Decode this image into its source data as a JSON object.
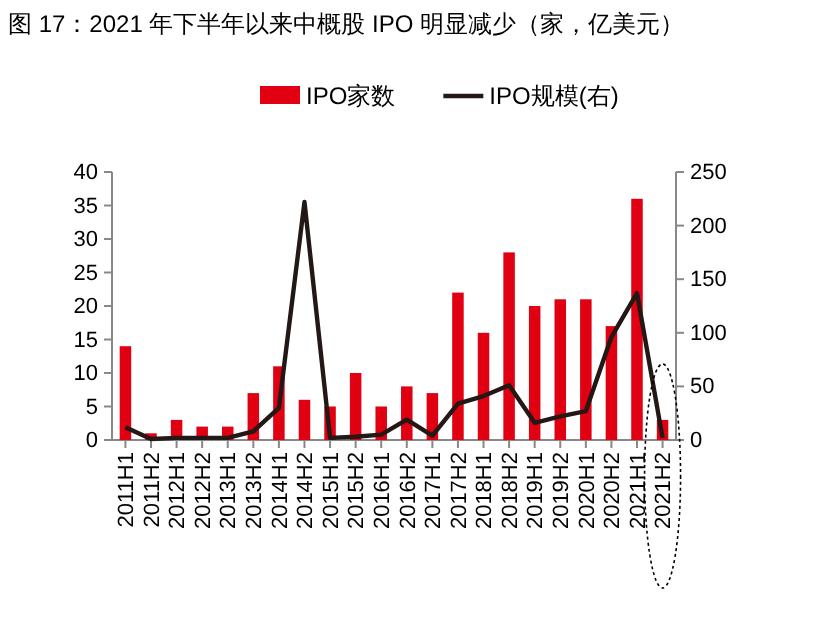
{
  "chart_data": {
    "type": "bar",
    "title": "图 17：2021 年下半年以来中概股 IPO 明显减少（家，亿美元）",
    "categories": [
      "2011H1",
      "2011H2",
      "2012H1",
      "2012H2",
      "2013H1",
      "2013H2",
      "2014H1",
      "2014H2",
      "2015H1",
      "2015H2",
      "2016H1",
      "2016H2",
      "2017H1",
      "2017H2",
      "2018H1",
      "2018H2",
      "2019H1",
      "2019H2",
      "2020H1",
      "2020H2",
      "2021H1",
      "2021H2"
    ],
    "series": [
      {
        "name": "IPO家数",
        "color": "#e00012",
        "values": [
          14,
          1,
          3,
          2,
          2,
          7,
          11,
          6,
          5,
          10,
          5,
          8,
          7,
          22,
          16,
          28,
          20,
          21,
          21,
          17,
          36,
          3
        ]
      },
      {
        "name": "IPO规模(右)",
        "type": "line",
        "axis": "y2",
        "color": "#231815",
        "values": [
          12,
          1,
          2,
          2,
          2,
          8,
          30,
          222,
          2,
          3,
          5,
          19,
          4,
          34,
          41,
          51,
          16,
          22,
          27,
          96,
          137,
          2
        ]
      }
    ],
    "ylim": [
      0,
      40
    ],
    "yticks": [
      0,
      5,
      10,
      15,
      20,
      25,
      30,
      35,
      40
    ],
    "y2lim": [
      0,
      250
    ],
    "y2ticks": [
      0,
      50,
      100,
      150,
      200,
      250
    ],
    "legend": "top",
    "grid": false
  }
}
